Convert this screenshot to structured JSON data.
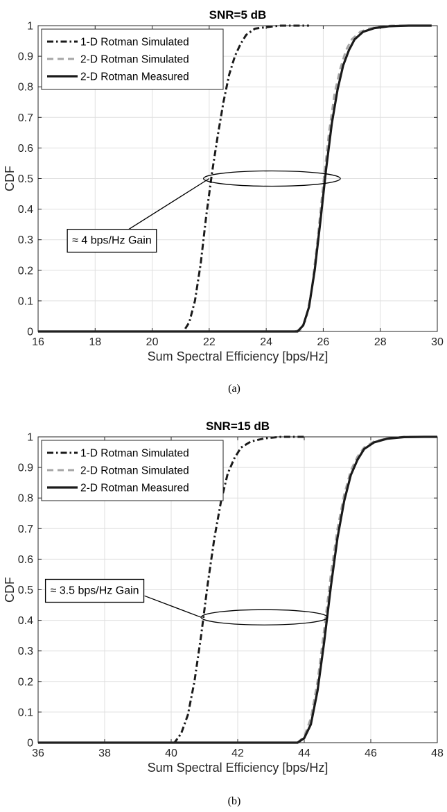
{
  "chart_data": [
    {
      "type": "line",
      "title": "SNR=5 dB",
      "xlabel": "Sum Spectral Efficiency [bps/Hz]",
      "ylabel": "CDF",
      "xlim": [
        16,
        30
      ],
      "ylim": [
        0,
        1
      ],
      "x_ticks": [
        "16",
        "18",
        "20",
        "22",
        "24",
        "26",
        "28",
        "30"
      ],
      "y_ticks": [
        "0",
        "0.1",
        "0.2",
        "0.3",
        "0.4",
        "0.5",
        "0.6",
        "0.7",
        "0.8",
        "0.9",
        "1"
      ],
      "grid": true,
      "legend_position": "top-left",
      "caption": "(a)",
      "series": [
        {
          "name": "1-D Rotman Simulated",
          "style": "dash-dot",
          "color": "#1a1a1a",
          "x": [
            16.0,
            21.1,
            21.3,
            21.5,
            21.7,
            21.9,
            22.1,
            22.3,
            22.5,
            22.7,
            22.9,
            23.1,
            23.3,
            23.6,
            24.0,
            24.5,
            25.5
          ],
          "y": [
            0,
            0,
            0.03,
            0.1,
            0.22,
            0.38,
            0.52,
            0.64,
            0.75,
            0.84,
            0.9,
            0.94,
            0.97,
            0.99,
            0.995,
            1,
            1
          ]
        },
        {
          "name": "2-D Rotman Simulated",
          "style": "dashed",
          "color": "#a6a6a6",
          "x": [
            25.0,
            25.2,
            25.4,
            25.6,
            25.8,
            26.0,
            26.2,
            26.4,
            26.6,
            26.8,
            27.0,
            27.3,
            27.6,
            28.0,
            28.4,
            29.0
          ],
          "y": [
            0,
            0.005,
            0.04,
            0.14,
            0.3,
            0.48,
            0.65,
            0.78,
            0.86,
            0.92,
            0.955,
            0.98,
            0.99,
            0.997,
            1,
            1
          ]
        },
        {
          "name": "2-D Rotman Measured",
          "style": "solid",
          "color": "#1a1a1a",
          "x": [
            16.0,
            25.1,
            25.3,
            25.5,
            25.7,
            25.9,
            26.1,
            26.3,
            26.5,
            26.7,
            26.9,
            27.1,
            27.4,
            27.8,
            28.3,
            29.0,
            29.8
          ],
          "y": [
            0,
            0,
            0.02,
            0.08,
            0.2,
            0.36,
            0.53,
            0.68,
            0.79,
            0.87,
            0.92,
            0.955,
            0.98,
            0.992,
            0.998,
            1,
            1
          ]
        }
      ],
      "annotation": {
        "text": "≈ 4 bps/Hz Gain",
        "ellipse_center": [
          24.2,
          0.5
        ],
        "ellipse_radii": [
          2.4,
          0.025
        ],
        "box_anchor": [
          17.0,
          0.3
        ],
        "leader_from": [
          18.6,
          0.3
        ],
        "leader_to": [
          22.0,
          0.5
        ]
      }
    },
    {
      "type": "line",
      "title": "SNR=15 dB",
      "xlabel": "Sum Spectral Efficiency [bps/Hz]",
      "ylabel": "CDF",
      "xlim": [
        36,
        48
      ],
      "ylim": [
        0,
        1
      ],
      "x_ticks": [
        "36",
        "38",
        "40",
        "42",
        "44",
        "46",
        "48"
      ],
      "y_ticks": [
        "0",
        "0.1",
        "0.2",
        "0.3",
        "0.4",
        "0.5",
        "0.6",
        "0.7",
        "0.8",
        "0.9",
        "1"
      ],
      "grid": true,
      "legend_position": "top-left",
      "caption": "(b)",
      "series": [
        {
          "name": "1-D Rotman Simulated",
          "style": "dash-dot",
          "color": "#1a1a1a",
          "x": [
            36.0,
            40.1,
            40.3,
            40.5,
            40.7,
            40.9,
            41.1,
            41.3,
            41.5,
            41.7,
            41.9,
            42.1,
            42.4,
            42.8,
            43.3,
            44.0
          ],
          "y": [
            0,
            0,
            0.03,
            0.09,
            0.2,
            0.35,
            0.52,
            0.67,
            0.79,
            0.88,
            0.93,
            0.965,
            0.985,
            0.995,
            1,
            1
          ]
        },
        {
          "name": "2-D Rotman Simulated",
          "style": "dashed",
          "color": "#a6a6a6",
          "x": [
            43.8,
            44.0,
            44.2,
            44.4,
            44.6,
            44.8,
            45.0,
            45.2,
            45.4,
            45.6,
            45.8,
            46.1,
            46.5,
            47.0,
            47.5
          ],
          "y": [
            0,
            0.02,
            0.08,
            0.2,
            0.37,
            0.55,
            0.7,
            0.81,
            0.89,
            0.935,
            0.965,
            0.985,
            0.995,
            1,
            1
          ]
        },
        {
          "name": "2-D Rotman Measured",
          "style": "solid",
          "color": "#1a1a1a",
          "x": [
            36.0,
            43.8,
            44.0,
            44.2,
            44.4,
            44.6,
            44.8,
            45.0,
            45.2,
            45.4,
            45.6,
            45.8,
            46.1,
            46.5,
            47.0,
            47.6,
            48.0
          ],
          "y": [
            0,
            0,
            0.015,
            0.06,
            0.17,
            0.33,
            0.51,
            0.67,
            0.79,
            0.875,
            0.925,
            0.96,
            0.982,
            0.994,
            0.999,
            1,
            1
          ]
        }
      ],
      "annotation": {
        "text": "≈ 3.5 bps/Hz Gain",
        "ellipse_center": [
          42.8,
          0.41
        ],
        "ellipse_radii": [
          1.9,
          0.025
        ],
        "box_anchor": [
          36.2,
          0.5
        ],
        "leader_from": [
          39.2,
          0.48
        ],
        "leader_to": [
          40.9,
          0.41
        ]
      }
    }
  ]
}
